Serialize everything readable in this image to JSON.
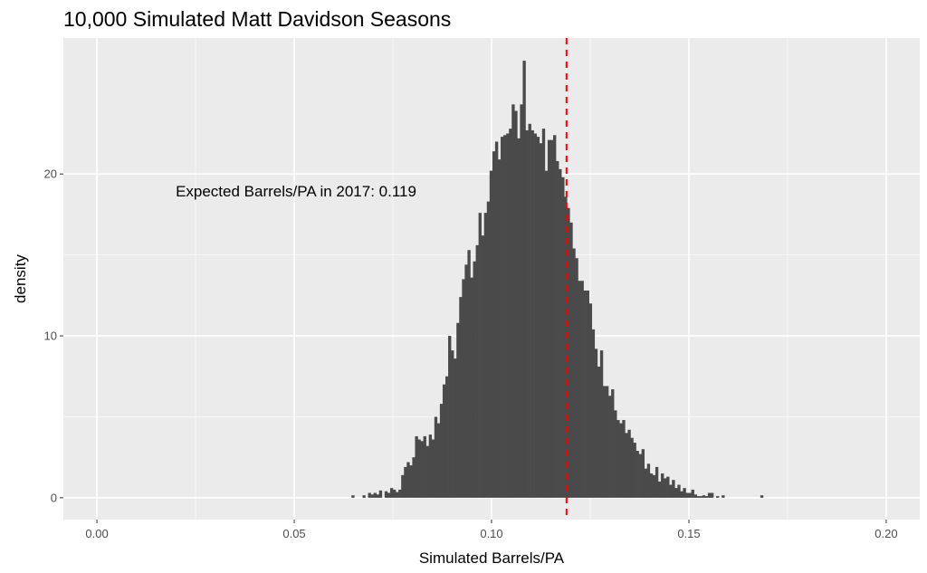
{
  "chart_data": {
    "type": "histogram",
    "title": "10,000 Simulated Matt Davidson Seasons",
    "xlabel": "Simulated Barrels/PA",
    "ylabel": "density",
    "xlim": [
      -0.0085,
      0.2085
    ],
    "ylim": [
      -1.35,
      28.4
    ],
    "x_ticks": [
      "0.00",
      "0.05",
      "0.10",
      "0.15",
      "0.20"
    ],
    "x_tick_values": [
      0.0,
      0.05,
      0.1,
      0.15,
      0.2
    ],
    "y_ticks": [
      "0",
      "10",
      "20"
    ],
    "y_tick_values": [
      0,
      10,
      20
    ],
    "grid": true,
    "reference_line": {
      "x": 0.119,
      "color": "#ff0000",
      "style": "dashed"
    },
    "annotation": {
      "text": "Expected Barrels/PA in 2017: 0.119",
      "x": 0.045,
      "y": 19.0
    },
    "bar_color": "#4a4a4a",
    "bin_start": 0.0645,
    "bin_width": 0.0007,
    "values": [
      0.15,
      0,
      0,
      0,
      0.15,
      0,
      0.3,
      0.2,
      0.3,
      0.2,
      0.45,
      0,
      0.4,
      0.3,
      0.6,
      0.5,
      0.35,
      0.5,
      1.4,
      1.9,
      2.2,
      2.0,
      2.5,
      3.8,
      3.6,
      3.5,
      3.8,
      3.2,
      3.9,
      3.6,
      5.0,
      4.6,
      5.8,
      7.0,
      7.5,
      10.0,
      9.1,
      8.6,
      10.8,
      12.4,
      13.5,
      14.4,
      15.3,
      13.6,
      14.6,
      15.6,
      17.6,
      16.2,
      17.6,
      18.3,
      20.2,
      21.4,
      22.0,
      20.9,
      22.3,
      22.4,
      22.5,
      22.8,
      24.3,
      23.9,
      22.2,
      24.3,
      27.0,
      22.7,
      23.1,
      22.7,
      22.5,
      22.3,
      21.9,
      22.8,
      20.2,
      22.1,
      22.1,
      22.4,
      20.8,
      20.3,
      19.8,
      18.6,
      17.9,
      17.0,
      15.4,
      14.8,
      13.4,
      13.4,
      12.8,
      12.8,
      12.0,
      10.4,
      9.2,
      8.1,
      9.1,
      6.9,
      6.9,
      6.3,
      6.7,
      5.4,
      4.8,
      4.6,
      4.8,
      4.0,
      4.2,
      3.7,
      3.4,
      2.9,
      2.7,
      3.0,
      1.8,
      2.1,
      1.5,
      1.4,
      1.9,
      1.0,
      1.5,
      1.2,
      1.3,
      0.8,
      1.1,
      0.6,
      0.8,
      0.4,
      0.6,
      0.3,
      0.3,
      0.5,
      0.2,
      0.1,
      0.1,
      0.15,
      0.1,
      0.3,
      0.3,
      0,
      0.1,
      0,
      0.15,
      0,
      0,
      0,
      0,
      0,
      0,
      0,
      0,
      0,
      0,
      0,
      0,
      0,
      0.15
    ]
  }
}
